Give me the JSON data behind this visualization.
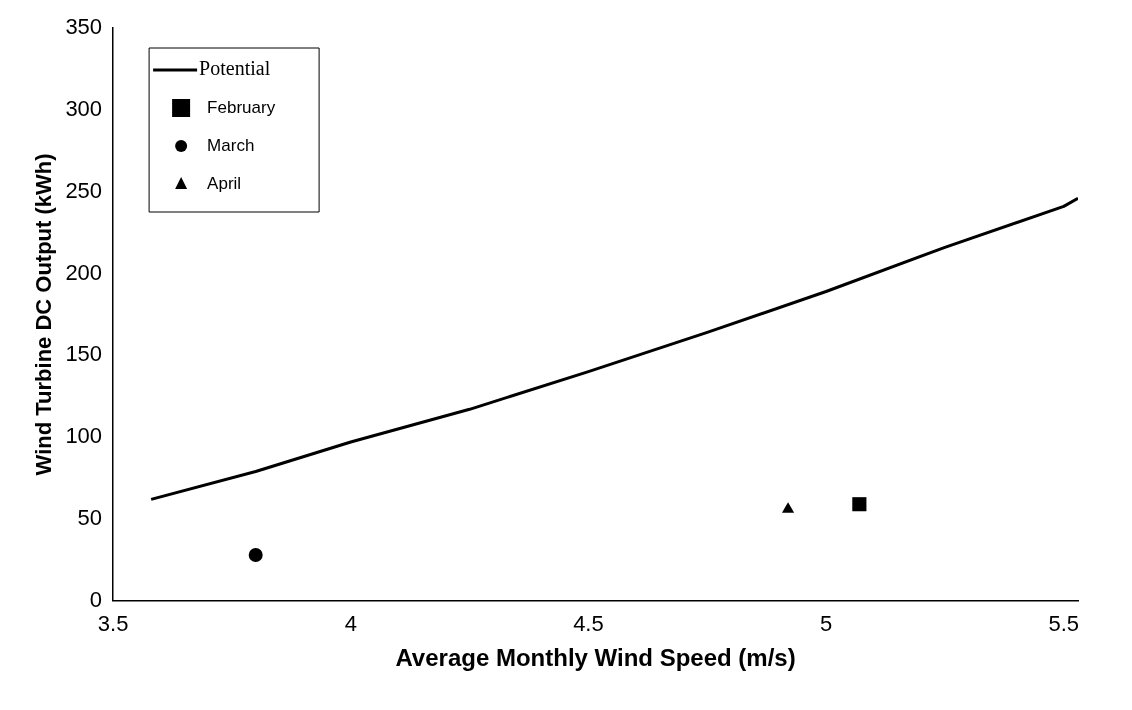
{
  "chart_data": {
    "type": "scatter",
    "xlabel": "Average Monthly Wind Speed (m/s)",
    "ylabel": "Wind Turbine DC Output (kWh)",
    "xlim": [
      3.5,
      5.53
    ],
    "xticks": [
      3.5,
      4,
      4.5,
      5,
      5.5
    ],
    "ylim": [
      0,
      350
    ],
    "yticks": [
      0,
      50,
      100,
      150,
      200,
      250,
      300,
      350
    ],
    "grid": false,
    "legend": "top left",
    "series": [
      {
        "name": "Potential",
        "type": "line",
        "color": "#000000",
        "marker": "none",
        "x": [
          3.58,
          3.8,
          4,
          4.25,
          4.5,
          4.75,
          5,
          5.25,
          5.5,
          5.53
        ],
        "values": [
          62,
          79,
          97,
          117,
          140,
          164,
          189,
          216,
          241,
          246
        ]
      },
      {
        "name": "February",
        "color": "#000000",
        "marker": "square",
        "x": [
          5.07
        ],
        "values": [
          59
        ]
      },
      {
        "name": "March",
        "color": "#000000",
        "marker": "circle",
        "x": [
          3.8
        ],
        "values": [
          28
        ]
      },
      {
        "name": "April",
        "color": "#000000",
        "marker": "triangle",
        "x": [
          4.92
        ],
        "values": [
          56
        ]
      }
    ]
  }
}
